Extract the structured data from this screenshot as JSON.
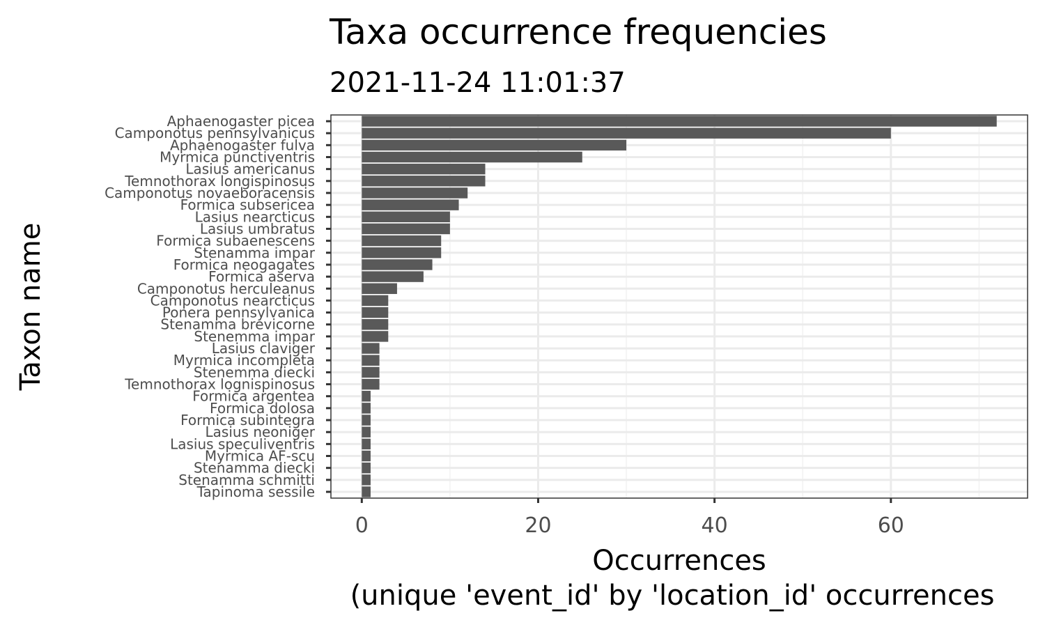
{
  "chart_data": {
    "type": "bar",
    "orientation": "horizontal",
    "title": "Taxa occurrence frequencies",
    "subtitle": "2021-11-24 11:01:37",
    "xlabel_line1": "Occurrences",
    "xlabel_line2": "(unique 'event_id' by 'location_id' occurrences",
    "ylabel": "Taxon name",
    "xlim": [
      -3.5,
      75.5
    ],
    "xticks": [
      0,
      20,
      40,
      60
    ],
    "grid": true,
    "bar_color": "#595959",
    "categories": [
      "Aphaenogaster picea",
      "Camponotus pennsylvanicus",
      "Aphaenogaster fulva",
      "Myrmica punctiventris",
      "Lasius americanus",
      "Temnothorax longispinosus",
      "Camponotus novaeboracensis",
      "Formica subsericea",
      "Lasius nearcticus",
      "Lasius umbratus",
      "Formica subaenescens",
      "Stenamma impar",
      "Formica neogagates",
      "Formica aserva",
      "Camponotus herculeanus",
      "Camponotus nearcticus",
      "Ponera pennsylvanica",
      "Stenamma brevicorne",
      "Stenemma impar",
      "Lasius claviger",
      "Myrmica incompleta",
      "Stenemma diecki",
      "Temnothorax lognispinosus",
      "Formica argentea",
      "Formica dolosa",
      "Formica subintegra",
      "Lasius neoniger",
      "Lasius speculiventris",
      "Myrmica AF-scu",
      "Stenamma diecki",
      "Stenamma schmitti",
      "Tapinoma sessile"
    ],
    "values": [
      72,
      60,
      30,
      25,
      14,
      14,
      12,
      11,
      10,
      10,
      9,
      9,
      8,
      7,
      4,
      3,
      3,
      3,
      3,
      2,
      2,
      2,
      2,
      1,
      1,
      1,
      1,
      1,
      1,
      1,
      1,
      1
    ]
  }
}
